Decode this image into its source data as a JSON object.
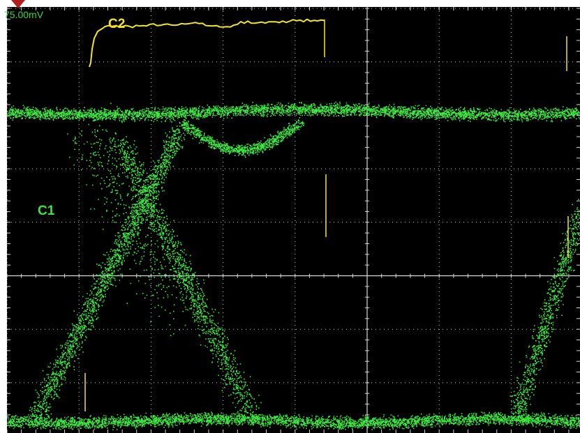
{
  "screen": {
    "trigger_level": "75.00mV",
    "channel_labels": {
      "c1": "C1",
      "c2": "C2"
    },
    "colors": {
      "background": "#000000",
      "grid": "#d9d9d9",
      "c1": "#3de83f",
      "c2": "#f5e52a",
      "trigger_marker": "#b31e1e"
    },
    "grid": {
      "divisions_x": 10,
      "divisions_y": 8,
      "minor_ticks_per_division": 5
    }
  }
}
